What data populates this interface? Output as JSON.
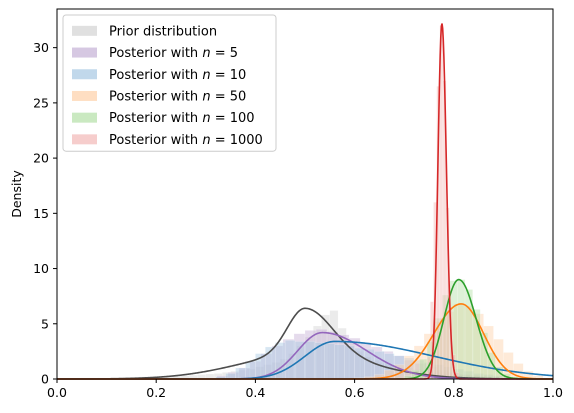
{
  "chart_data": {
    "type": "histogram-kde",
    "title": "",
    "xlabel": "",
    "ylabel": "Density",
    "xlim": [
      0.0,
      1.0
    ],
    "ylim": [
      0,
      33.5
    ],
    "xticks": [
      "0.0",
      "0.2",
      "0.4",
      "0.6",
      "0.8",
      "1.0"
    ],
    "yticks": [
      "0",
      "5",
      "10",
      "15",
      "20",
      "25",
      "30"
    ],
    "legend_position": "top-left",
    "grid": false,
    "series": [
      {
        "name": "Prior distribution",
        "color": "#4d4d4d",
        "fill": "#d3d3d3",
        "mode": 0.5,
        "peak": 6.4,
        "left_sd": 0.035,
        "right_sd": 0.055,
        "tail_weight": 0.35,
        "tail_sd": 0.13,
        "hist_range": [
          0.0,
          1.0
        ],
        "hist_heights": [
          0.05,
          0.05,
          0.05,
          0.1,
          0.1,
          0.1,
          0.1,
          0.1,
          0.15,
          0.15,
          0.2,
          0.2,
          0.2,
          0.25,
          0.3,
          0.3,
          0.35,
          0.4,
          0.45,
          0.5,
          0.6,
          0.7,
          0.8,
          0.9,
          1.1,
          1.3,
          1.5,
          1.8,
          2.3,
          3.0,
          3.8,
          4.8,
          5.8,
          6.2,
          4.6,
          3.4,
          2.5,
          2.0,
          1.7,
          1.5,
          1.3,
          1.1,
          1.0,
          0.9,
          0.8,
          0.7,
          0.6,
          0.5,
          0.45,
          0.4,
          0.35,
          0.3,
          0.25,
          0.2,
          0.2,
          0.15,
          0.15,
          0.1,
          0.1,
          0.05
        ]
      },
      {
        "name": "Posterior with n = 5",
        "color": "#9467bd",
        "fill": "#c5b0d5",
        "mode": 0.535,
        "peak": 4.2,
        "left_sd": 0.05,
        "right_sd": 0.09,
        "tail_weight": 0.0,
        "tail_sd": 0.1,
        "hist_range": [
          0.3,
          0.9
        ],
        "hist_heights": [
          0.1,
          0.3,
          0.6,
          1.0,
          1.6,
          2.3,
          3.0,
          3.6,
          4.1,
          4.4,
          4.5,
          4.3,
          4.0,
          3.7,
          3.3,
          2.9,
          2.5,
          2.1,
          1.7,
          1.4,
          1.1,
          0.8,
          0.6,
          0.4,
          0.3,
          0.2,
          0.1
        ]
      },
      {
        "name": "Posterior with n = 10",
        "color": "#1f77b4",
        "fill": "#a6c8e3",
        "mode": 0.56,
        "peak": 3.4,
        "left_sd": 0.06,
        "right_sd": 0.2,
        "tail_weight": 0.0,
        "tail_sd": 0.1,
        "hist_range": [
          0.32,
          1.0
        ],
        "hist_heights": [
          0.2,
          0.5,
          1.0,
          1.6,
          2.3,
          2.9,
          3.3,
          3.5,
          3.4,
          3.4,
          3.3,
          3.2,
          3.1,
          3.0,
          2.8,
          2.7,
          2.5,
          2.3,
          2.1,
          1.9,
          1.7,
          1.5,
          1.3,
          1.1,
          0.9,
          0.7,
          0.5,
          0.4,
          0.3,
          0.2,
          0.15,
          0.1,
          0.05,
          0.05
        ]
      },
      {
        "name": "Posterior with n = 50",
        "color": "#ff7f0e",
        "fill": "#fdd0a8",
        "mode": 0.815,
        "peak": 6.8,
        "left_sd": 0.055,
        "right_sd": 0.045,
        "tail_weight": 0.0,
        "tail_sd": 0.1,
        "hist_range": [
          0.6,
          1.0
        ],
        "hist_heights": [
          0.1,
          0.2,
          0.4,
          0.8,
          1.3,
          2.1,
          3.0,
          4.1,
          5.2,
          6.1,
          6.8,
          6.6,
          5.9,
          4.8,
          3.6,
          2.4,
          1.4,
          0.7,
          0.3,
          0.1
        ]
      },
      {
        "name": "Posterior with n = 100",
        "color": "#2ca02c",
        "fill": "#b3e0a6",
        "mode": 0.81,
        "peak": 9.0,
        "left_sd": 0.03,
        "right_sd": 0.035,
        "tail_weight": 0.0,
        "tail_sd": 0.1,
        "hist_range": [
          0.7,
          0.93
        ],
        "hist_heights": [
          0.3,
          0.8,
          1.8,
          3.4,
          5.5,
          7.6,
          8.9,
          9.0,
          8.1,
          6.3,
          4.2,
          2.4,
          1.1,
          0.5,
          0.2
        ]
      },
      {
        "name": "Posterior with n = 1000",
        "color": "#d62728",
        "fill": "#f2b8b6",
        "mode": 0.776,
        "peak": 32.2,
        "left_sd": 0.008,
        "right_sd": 0.009,
        "tail_weight": 0.0,
        "tail_sd": 0.1,
        "hist_range": [
          0.74,
          0.81
        ],
        "hist_heights": [
          0.6,
          2.0,
          7.0,
          16.0,
          26.5,
          32.0,
          27.0,
          15.5,
          6.5,
          2.2,
          0.6
        ]
      }
    ]
  }
}
